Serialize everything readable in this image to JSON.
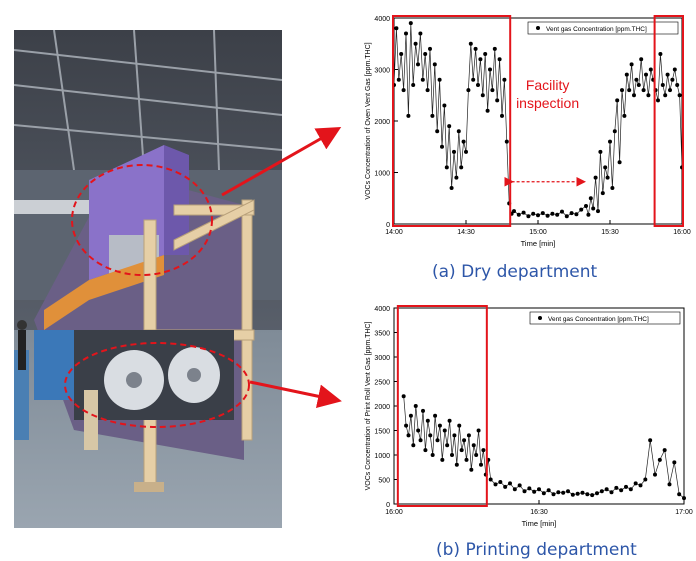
{
  "figure": {
    "caption_a": "(a) Dry department",
    "caption_b": "(b) Printing department"
  },
  "colors": {
    "highlight": "#e3141b",
    "caption": "#2d56a8",
    "machine_purple": "#8a72c9"
  },
  "chart_data": [
    {
      "type": "line",
      "xlabel": "Time [min]",
      "ylabel": "VOCs Concentration of Oven Vent Gas [ppm.THC]",
      "legend": "Vent gas Concentration [ppm.THC]",
      "legend_position": "top-right",
      "xticks": [
        "14:00",
        "14:30",
        "15:00",
        "15:30",
        "16:00"
      ],
      "xlim": [
        0,
        120
      ],
      "ylim": [
        0,
        4000
      ],
      "yticks": [
        0,
        1000,
        2000,
        3000,
        4000
      ],
      "annotation": "Facility\ninspection",
      "annotation_lines": [
        "Facility",
        "inspection"
      ],
      "highlight_ranges_min": [
        [
          0,
          48
        ],
        [
          109,
          120
        ]
      ],
      "inspection_range_min": [
        49,
        79
      ],
      "series": [
        {
          "name": "Vent gas Concentration [ppm.THC]",
          "x": [
            0,
            1,
            2,
            3,
            4,
            5,
            6,
            7,
            8,
            9,
            10,
            11,
            12,
            13,
            14,
            15,
            16,
            17,
            18,
            19,
            20,
            21,
            22,
            23,
            24,
            25,
            26,
            27,
            28,
            29,
            30,
            31,
            32,
            33,
            34,
            35,
            36,
            37,
            38,
            39,
            40,
            41,
            42,
            43,
            44,
            45,
            46,
            47,
            48,
            49,
            50,
            52,
            54,
            56,
            58,
            60,
            62,
            64,
            66,
            68,
            70,
            72,
            74,
            76,
            78,
            80,
            81,
            82,
            83,
            84,
            85,
            86,
            87,
            88,
            89,
            90,
            91,
            92,
            93,
            94,
            95,
            96,
            97,
            98,
            99,
            100,
            101,
            102,
            103,
            104,
            105,
            106,
            107,
            108,
            109,
            110,
            111,
            112,
            113,
            114,
            115,
            116,
            117,
            118,
            119,
            120
          ],
          "y": [
            2700,
            3800,
            2800,
            3300,
            2600,
            3700,
            2100,
            3900,
            2700,
            3500,
            3100,
            3700,
            2800,
            3300,
            2600,
            3400,
            2100,
            3100,
            1800,
            2800,
            1500,
            2300,
            1100,
            1900,
            700,
            1400,
            900,
            1800,
            1100,
            1600,
            1400,
            2600,
            3500,
            2800,
            3400,
            2700,
            3200,
            2500,
            3300,
            2200,
            3000,
            2600,
            3400,
            2400,
            3200,
            2100,
            2800,
            1600,
            400,
            200,
            250,
            180,
            220,
            150,
            200,
            170,
            210,
            160,
            200,
            180,
            240,
            150,
            210,
            190,
            280,
            350,
            180,
            500,
            300,
            900,
            250,
            1400,
            600,
            1100,
            900,
            1600,
            700,
            1800,
            2400,
            1200,
            2600,
            2100,
            2900,
            2600,
            3100,
            2500,
            2800,
            2700,
            3200,
            2600,
            2900,
            2500,
            3000,
            2800,
            2600,
            2400,
            3300,
            2700,
            2500,
            2900,
            2600,
            2800,
            3000,
            2700,
            2500,
            1100
          ]
        }
      ]
    },
    {
      "type": "line",
      "xlabel": "Time [min]",
      "ylabel": "VOCs Concentration of Print Roll Vent Gas [ppm.THC]",
      "legend": "Vent gas Concentration [ppm.THC]",
      "legend_position": "top-right",
      "xticks": [
        "16:00",
        "16:30",
        "17:00"
      ],
      "xlim": [
        0,
        60
      ],
      "ylim": [
        0,
        4000
      ],
      "yticks": [
        0,
        500,
        1000,
        1500,
        2000,
        2500,
        3000,
        3500,
        4000
      ],
      "highlight_ranges_min": [
        [
          1,
          19
        ]
      ],
      "series": [
        {
          "name": "Vent gas Concentration [ppm.THC]",
          "x": [
            2,
            2.5,
            3,
            3.5,
            4,
            4.5,
            5,
            5.5,
            6,
            6.5,
            7,
            7.5,
            8,
            8.5,
            9,
            9.5,
            10,
            10.5,
            11,
            11.5,
            12,
            12.5,
            13,
            13.5,
            14,
            14.5,
            15,
            15.5,
            16,
            16.5,
            17,
            17.5,
            18,
            18.5,
            19,
            19.5,
            20,
            21,
            22,
            23,
            24,
            25,
            26,
            27,
            28,
            29,
            30,
            31,
            32,
            33,
            34,
            35,
            36,
            37,
            38,
            39,
            40,
            41,
            42,
            43,
            44,
            45,
            46,
            47,
            48,
            49,
            50,
            51,
            52,
            53,
            54,
            55,
            56,
            57,
            58,
            59,
            60
          ],
          "y": [
            2200,
            1600,
            1400,
            1800,
            1200,
            2000,
            1500,
            1300,
            1900,
            1100,
            1700,
            1400,
            1000,
            1800,
            1300,
            1600,
            900,
            1500,
            1200,
            1700,
            1000,
            1400,
            800,
            1600,
            1100,
            1300,
            900,
            1400,
            700,
            1200,
            1000,
            1500,
            800,
            1100,
            600,
            900,
            500,
            400,
            450,
            350,
            420,
            300,
            380,
            260,
            320,
            250,
            300,
            220,
            280,
            200,
            240,
            230,
            260,
            190,
            210,
            230,
            200,
            180,
            220,
            260,
            300,
            240,
            330,
            280,
            350,
            300,
            420,
            380,
            500,
            1300,
            600,
            900,
            1100,
            400,
            850,
            200,
            120
          ]
        }
      ]
    }
  ]
}
